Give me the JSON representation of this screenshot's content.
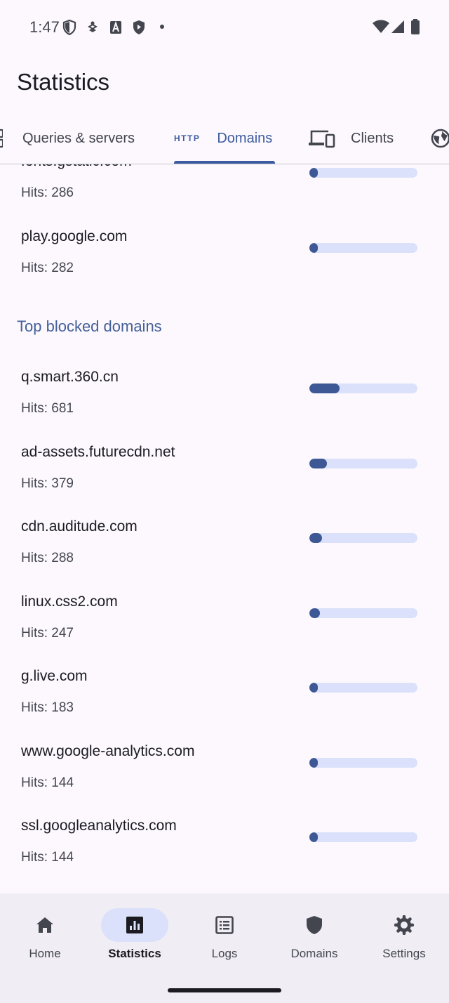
{
  "status_bar": {
    "time": "1:47",
    "icons": [
      "shield-outline-icon",
      "bug-icon",
      "accessibility-a-icon",
      "play-shield-icon",
      "dot-icon"
    ],
    "right_icons": [
      "wifi-icon",
      "cell-signal-icon",
      "battery-icon"
    ]
  },
  "app_bar": {
    "title": "Statistics"
  },
  "tabs": [
    {
      "label": "Queries & servers",
      "icon": "dns-icon"
    },
    {
      "label": "Domains",
      "icon": "http-icon",
      "icon_text": "HTTP",
      "active": true
    },
    {
      "label": "Clients",
      "icon": "devices-icon"
    },
    {
      "label": "",
      "icon": "globe-icon"
    }
  ],
  "top_domains_tail": [
    {
      "domain": "fonts.gstatic.com",
      "hits": "Hits: 286",
      "fraction": 0.06
    },
    {
      "domain": "play.google.com",
      "hits": "Hits: 282",
      "fraction": 0.06
    }
  ],
  "blocked_section": {
    "title": "Top blocked domains",
    "items": [
      {
        "domain": "q.smart.360.cn",
        "hits": "Hits: 681",
        "fraction": 0.28
      },
      {
        "domain": "ad-assets.futurecdn.net",
        "hits": "Hits: 379",
        "fraction": 0.16
      },
      {
        "domain": "cdn.auditude.com",
        "hits": "Hits: 288",
        "fraction": 0.12
      },
      {
        "domain": "linux.css2.com",
        "hits": "Hits: 247",
        "fraction": 0.1
      },
      {
        "domain": "g.live.com",
        "hits": "Hits: 183",
        "fraction": 0.07
      },
      {
        "domain": "www.google-analytics.com",
        "hits": "Hits: 144",
        "fraction": 0.06
      },
      {
        "domain": "ssl.googleanalytics.com",
        "hits": "Hits: 144",
        "fraction": 0.06
      }
    ]
  },
  "bottom_nav": [
    {
      "label": "Home",
      "icon": "home-icon"
    },
    {
      "label": "Statistics",
      "icon": "bar-chart-icon",
      "active": true
    },
    {
      "label": "Logs",
      "icon": "list-icon"
    },
    {
      "label": "Domains",
      "icon": "shield-icon"
    },
    {
      "label": "Settings",
      "icon": "gear-icon"
    }
  ],
  "colors": {
    "accent": "#3d5ba0",
    "bar_fill": "#3d5895",
    "bar_track": "#dbe1fa",
    "background": "#fcf8fd"
  }
}
